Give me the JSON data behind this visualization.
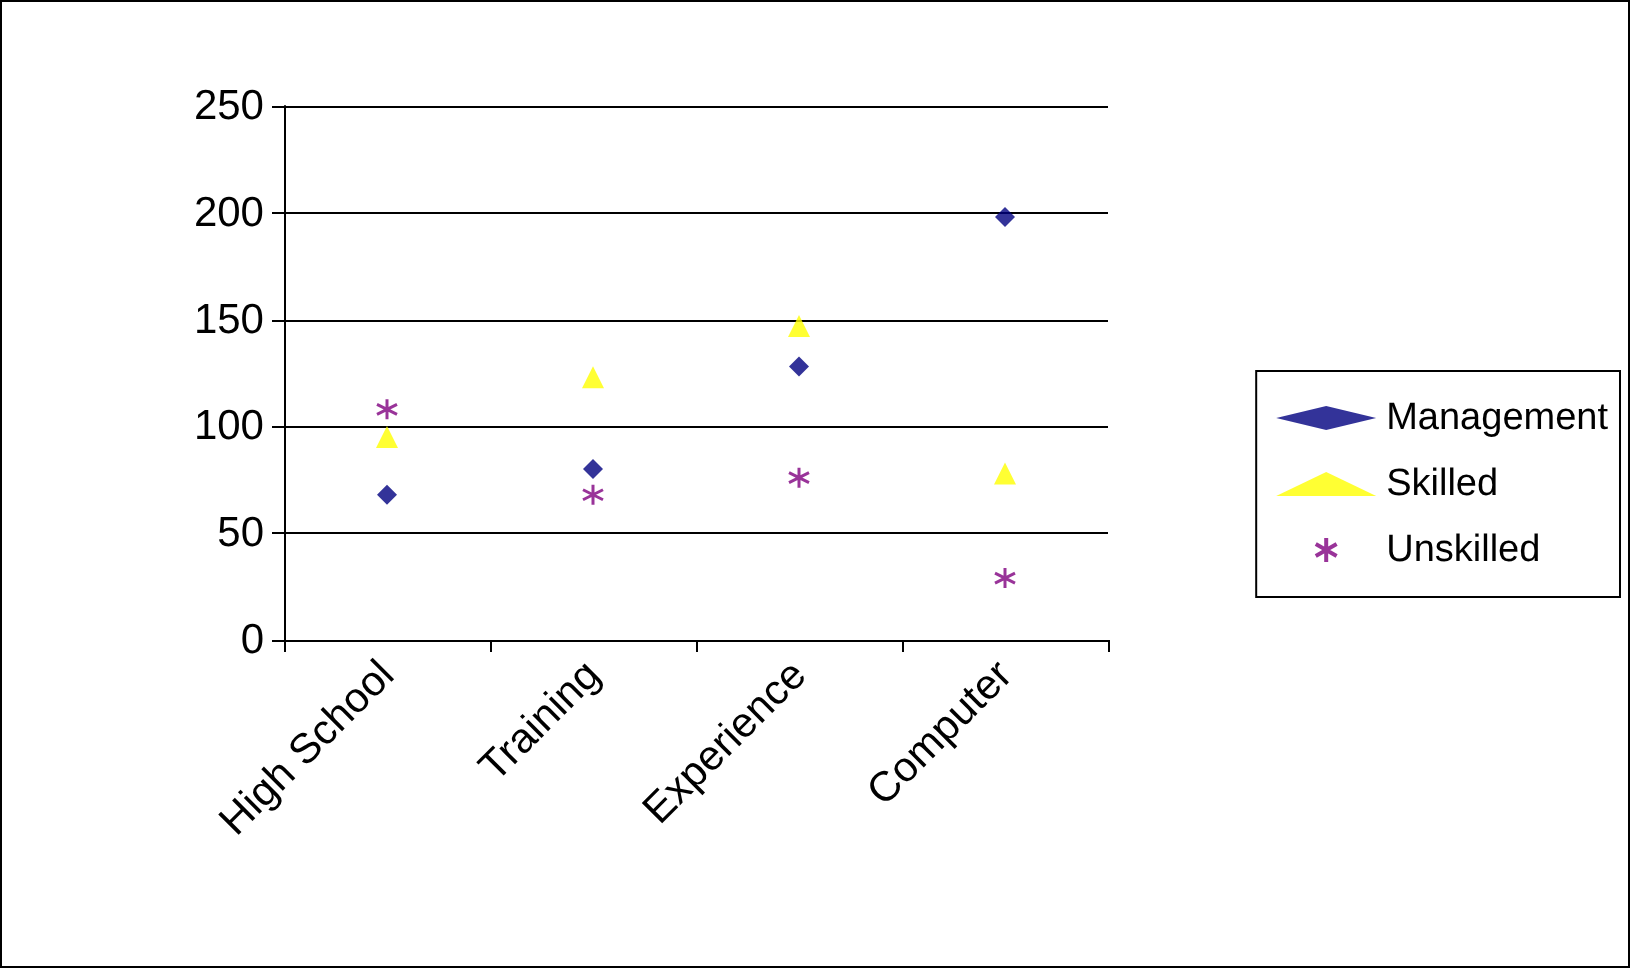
{
  "chart_data": {
    "type": "scatter",
    "categories": [
      "High School",
      "Training",
      "Experience",
      "Computer"
    ],
    "series": [
      {
        "name": "Management",
        "color": "#000080",
        "marker": "diamond",
        "values": [
          68,
          80,
          128,
          198
        ]
      },
      {
        "name": "Skilled",
        "color": "#ffff00",
        "marker": "triangle",
        "values": [
          95,
          123,
          147,
          78
        ]
      },
      {
        "name": "Unskilled",
        "color": "#800080",
        "marker": "cross",
        "values": [
          108,
          68,
          76,
          29
        ]
      }
    ],
    "ylim": [
      0,
      250
    ],
    "yticks": [
      0,
      50,
      100,
      150,
      200,
      250
    ],
    "grid": "y",
    "legend": "right"
  }
}
